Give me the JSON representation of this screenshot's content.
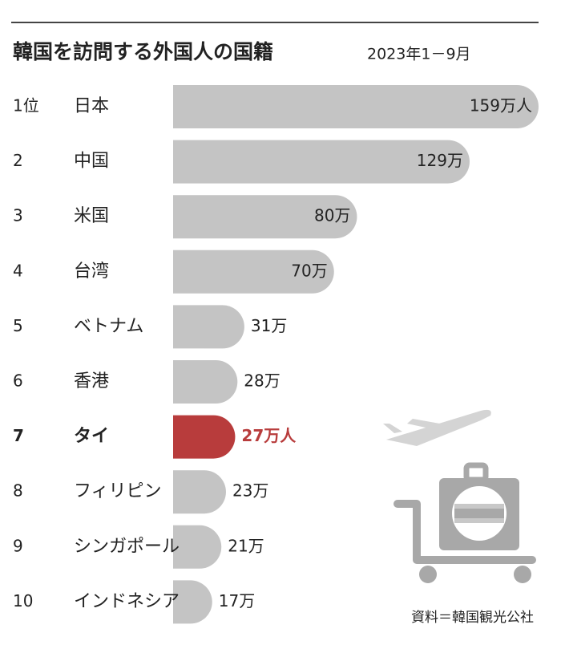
{
  "chart_data": {
    "type": "bar",
    "orientation": "horizontal",
    "title": "韓国を訪問する外国人の国籍",
    "subtitle": "2023年1－9月",
    "source": "資料＝韓国観光公社",
    "ranks": [
      "1位",
      "2",
      "3",
      "4",
      "5",
      "6",
      "7",
      "8",
      "9",
      "10"
    ],
    "categories": [
      "日本",
      "中国",
      "米国",
      "台湾",
      "ベトナム",
      "香港",
      "タイ",
      "フィリピン",
      "シンガポール",
      "インドネシア"
    ],
    "values": [
      159,
      129,
      80,
      70,
      31,
      28,
      27,
      23,
      21,
      17
    ],
    "value_labels": [
      "159万人",
      "129万",
      "80万",
      "70万",
      "31万",
      "28万",
      "27万人",
      "23万",
      "21万",
      "17万"
    ],
    "colors": [
      "#c4c4c4",
      "#c4c4c4",
      "#c4c4c4",
      "#c4c4c4",
      "#c4c4c4",
      "#c4c4c4",
      "#b83c3c",
      "#c4c4c4",
      "#c4c4c4",
      "#c4c4c4"
    ]
  }
}
